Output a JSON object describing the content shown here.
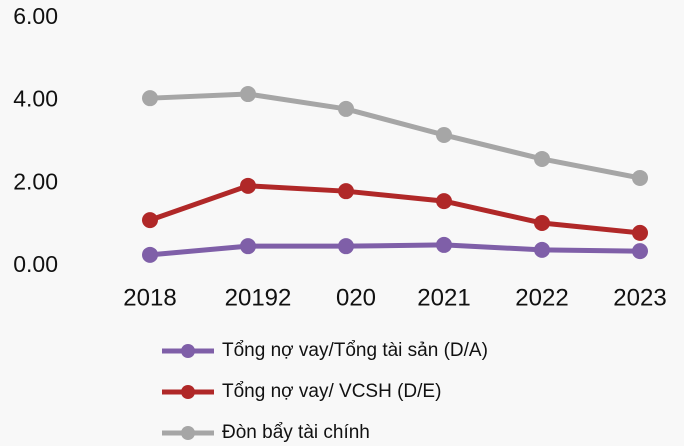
{
  "chart_data": {
    "type": "line",
    "categories": [
      "2018",
      "20192",
      "020",
      "2021",
      "2022",
      "2023"
    ],
    "series": [
      {
        "name": "Tổng nợ vay/Tổng tài sản (D/A)",
        "color": "#7f5fa8",
        "values": [
          0.27,
          0.48,
          0.48,
          0.51,
          0.39,
          0.36
        ]
      },
      {
        "name": "Tổng nợ vay/ VCSH (D/E)",
        "color": "#b02828",
        "values": [
          1.11,
          1.94,
          1.81,
          1.57,
          1.04,
          0.8
        ]
      },
      {
        "name": "Đòn bẩy tài chính",
        "color": "#a6a6a6",
        "values": [
          4.06,
          4.16,
          3.8,
          3.17,
          2.59,
          2.13
        ]
      }
    ],
    "ylim": [
      0,
      6
    ],
    "yticks": [
      {
        "value": 0,
        "label": "0.00"
      },
      {
        "value": 2,
        "label": "2.00"
      },
      {
        "value": 4,
        "label": "4.00"
      },
      {
        "value": 6,
        "label": "6.00"
      }
    ],
    "grid": false
  }
}
